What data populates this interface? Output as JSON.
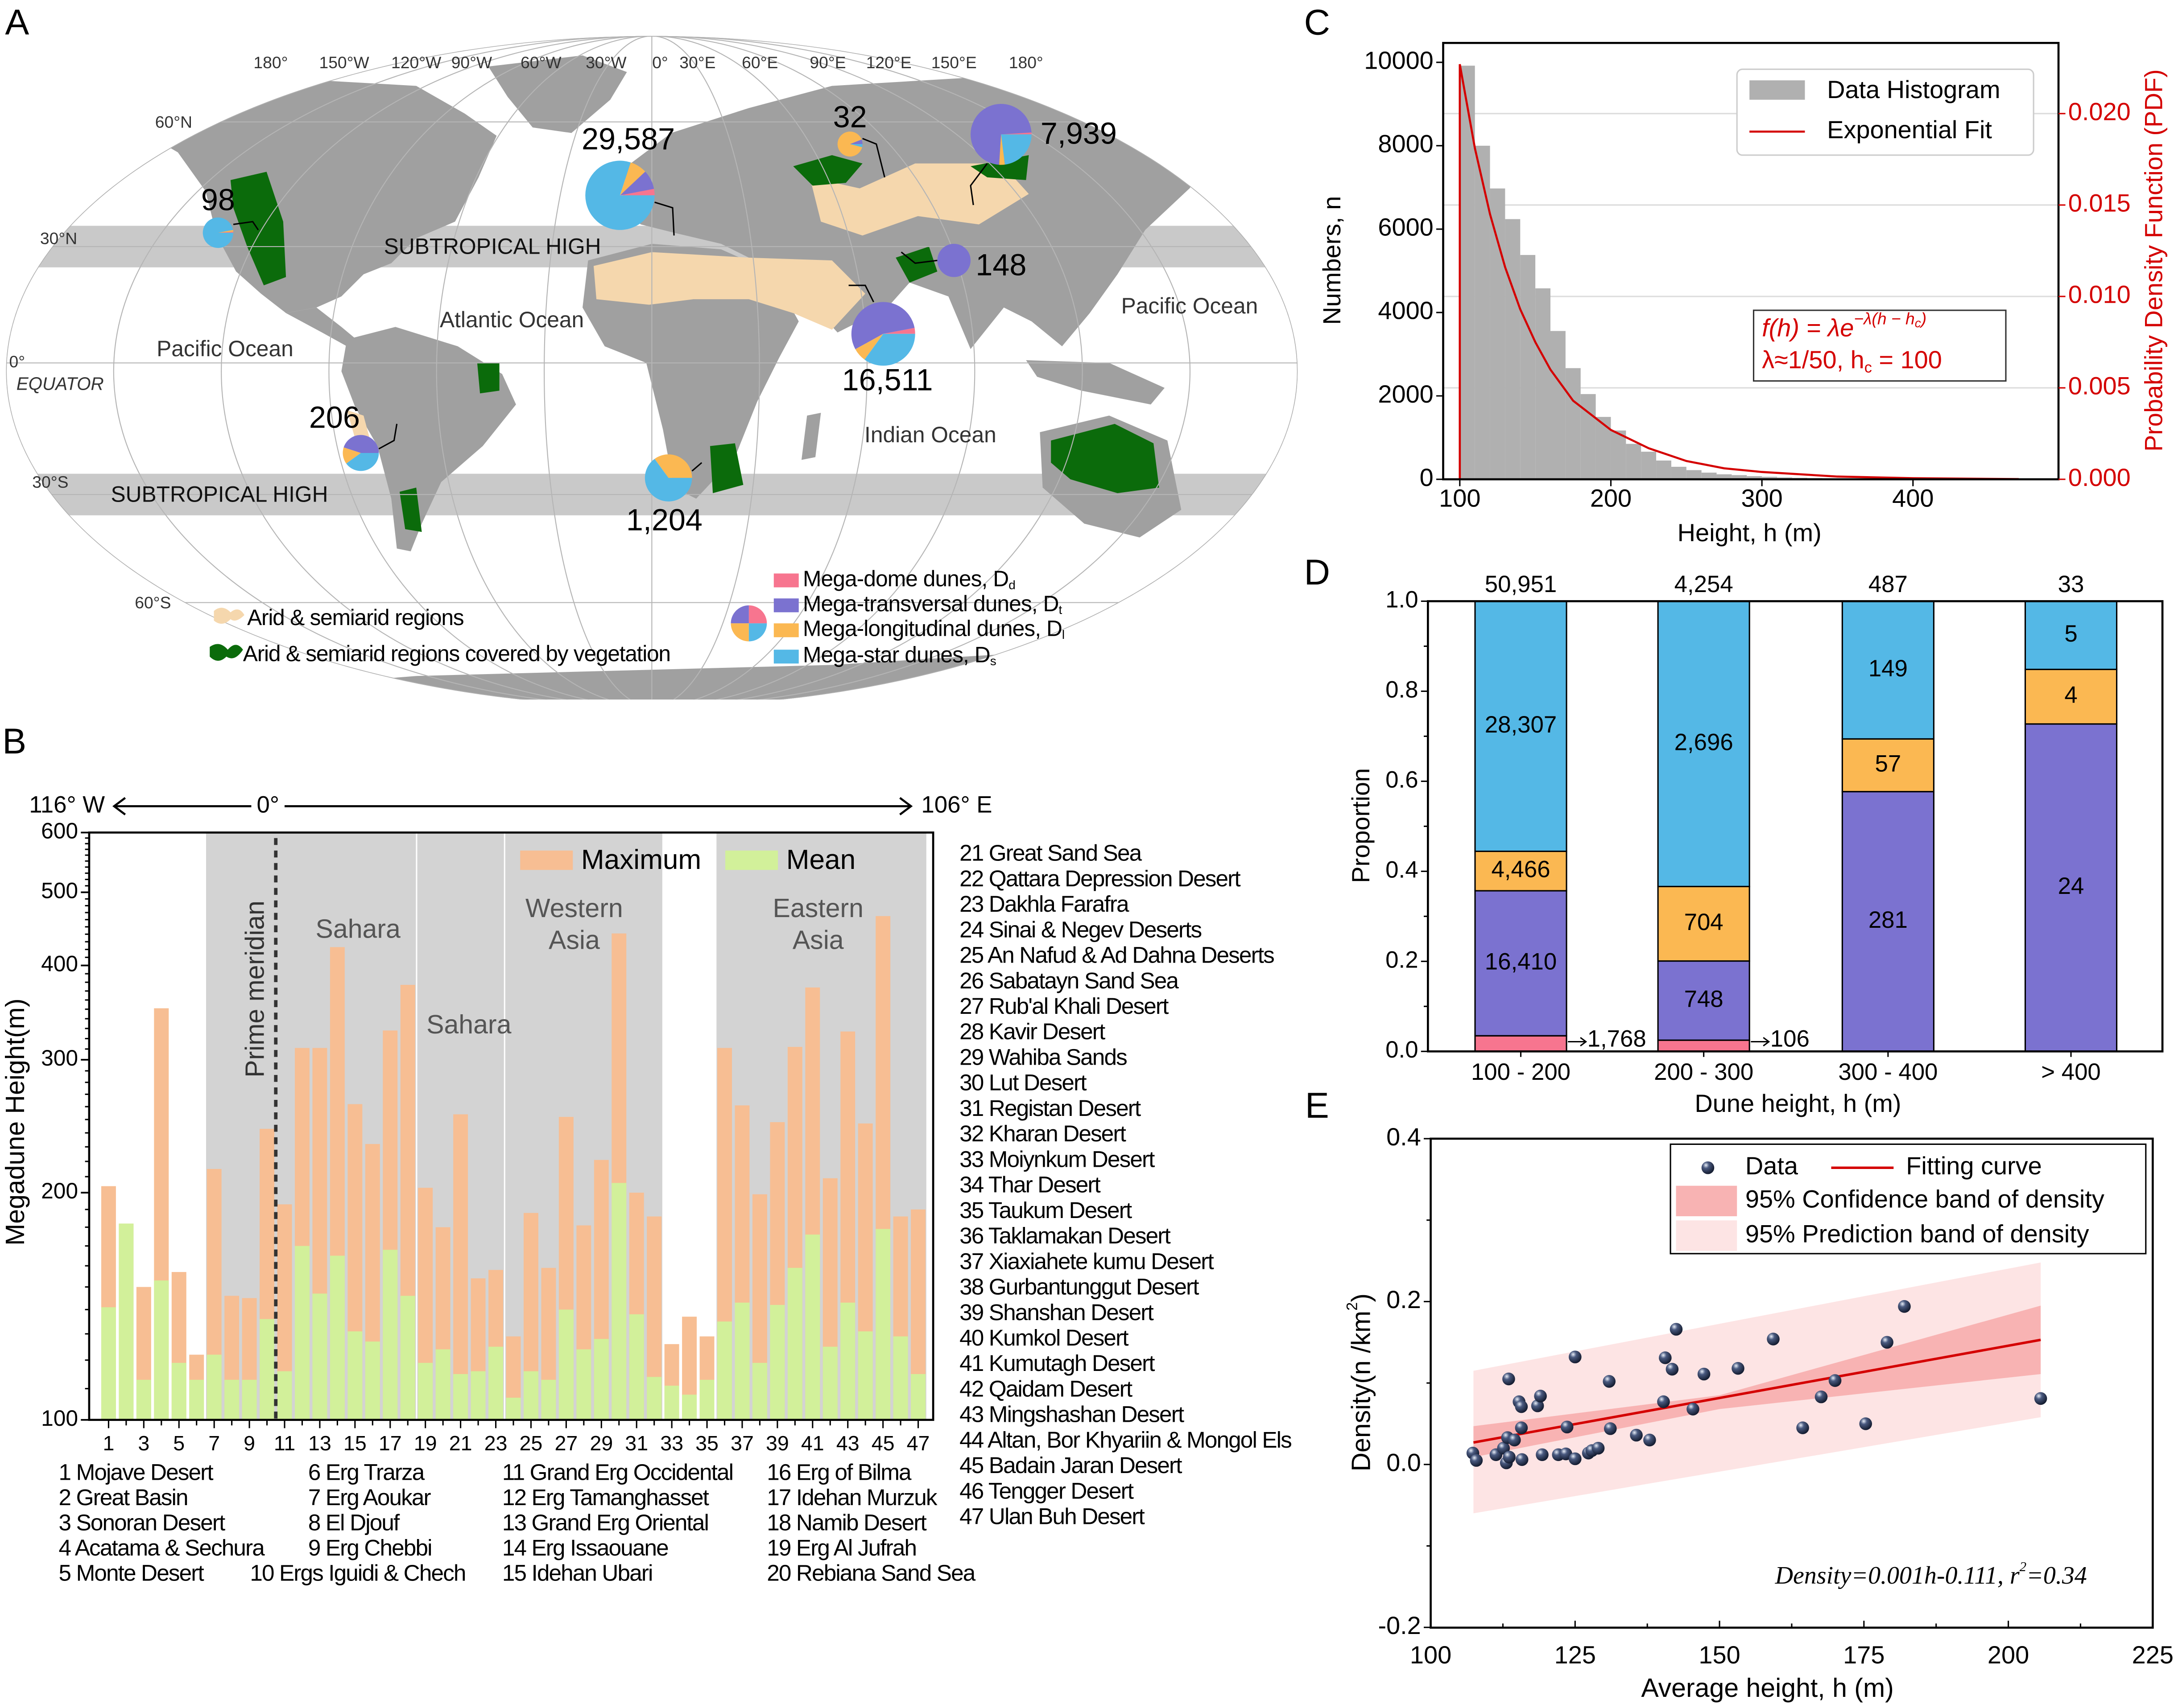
{
  "panel_labels": [
    "A",
    "B",
    "C",
    "D",
    "E"
  ],
  "colors": {
    "dome": "#f7758f",
    "transversal": "#7b72d0",
    "longitudinal": "#fbb852",
    "star": "#54b8e6",
    "land": "#a0a0a0",
    "arid": "#f5d7ad",
    "vegetation": "#0b6b0b",
    "band": "#c9c9c9",
    "maximum": "#f7be93",
    "mean": "#d2f09a",
    "region_shade": "#d3d3d3",
    "histogram": "#b0b0b0",
    "fit": "#d40000",
    "point": "#1f2a44",
    "confidence": "#f8b3b3",
    "prediction": "#fde4e4"
  },
  "chart_data": [
    {
      "type": "map",
      "longitude_labels": [
        "180°",
        "150°W",
        "120°W",
        "90°W",
        "60°W",
        "30°W",
        "0°",
        "30°E",
        "60°E",
        "90°E",
        "120°E",
        "150°E",
        "180°"
      ],
      "latitude_labels": [
        "60°N",
        "30°N",
        "0°",
        "30°S",
        "60°S"
      ],
      "equator_label": "EQUATOR",
      "band_labels": [
        "SUBTROPICAL HIGH",
        "SUBTROPICAL HIGH"
      ],
      "ocean_labels": [
        "Pacific Ocean",
        "Atlantic Ocean",
        "Pacific Ocean",
        "Indian Ocean"
      ],
      "pies": [
        {
          "total": "98",
          "fractions": [
            0.01,
            0.0,
            0.02,
            0.97
          ]
        },
        {
          "total": "29,587",
          "fractions": [
            0.03,
            0.09,
            0.08,
            0.8
          ]
        },
        {
          "total": "32",
          "fractions": [
            0.0,
            0.06,
            0.9,
            0.04
          ]
        },
        {
          "total": "7,939",
          "fractions": [
            0.01,
            0.73,
            0.03,
            0.23
          ]
        },
        {
          "total": "148",
          "fractions": [
            0.0,
            1.0,
            0.0,
            0.0
          ]
        },
        {
          "total": "16,511",
          "fractions": [
            0.03,
            0.55,
            0.07,
            0.35
          ]
        },
        {
          "total": "206",
          "fractions": [
            0.0,
            0.45,
            0.15,
            0.4
          ]
        },
        {
          "total": "1,204",
          "fractions": [
            0.0,
            0.0,
            0.35,
            0.65
          ]
        }
      ],
      "region_legend": [
        "Arid & semiarid regions",
        "Arid & semiarid regions covered by vegetation"
      ],
      "dune_legend": [
        {
          "label": "Mega-dome dunes, D",
          "sub": "d"
        },
        {
          "label": "Mega-transversal dunes, D",
          "sub": "t"
        },
        {
          "label": "Mega-longitudinal dunes, D",
          "sub": "l"
        },
        {
          "label": "Mega-star dunes, D",
          "sub": "s"
        }
      ]
    },
    {
      "type": "bar",
      "y_scale": "log",
      "ylim": [
        100,
        600
      ],
      "yticks": [
        "100",
        "200",
        "300",
        "400",
        "500",
        "600"
      ],
      "ylabel": "Megadune Height(m)",
      "xticklabels": [
        "1",
        "3",
        "5",
        "7",
        "9",
        "11",
        "13",
        "15",
        "17",
        "19",
        "21",
        "23",
        "25",
        "27",
        "29",
        "31",
        "33",
        "35",
        "37",
        "39",
        "41",
        "43",
        "45",
        "47"
      ],
      "direction": {
        "west": "116° W",
        "center": "0°",
        "east": "106° E"
      },
      "legend": [
        "Maximum",
        "Mean"
      ],
      "prime_meridian_label": "Prime meridian",
      "prime_meridian_between": [
        10,
        11
      ],
      "regions": [
        {
          "label": "Sahara",
          "from": 7,
          "to": 18
        },
        {
          "label": "Sahara",
          "from": 19,
          "to": 23
        },
        {
          "label": "Western Asia",
          "from": 24,
          "to": 32
        },
        {
          "label": "Eastern Asia",
          "from": 36,
          "to": 47
        }
      ],
      "categories": [
        1,
        2,
        3,
        4,
        5,
        6,
        7,
        8,
        9,
        10,
        11,
        12,
        13,
        14,
        15,
        16,
        17,
        18,
        19,
        20,
        21,
        22,
        23,
        24,
        25,
        26,
        27,
        28,
        29,
        30,
        31,
        32,
        33,
        34,
        35,
        36,
        37,
        38,
        39,
        40,
        41,
        42,
        43,
        44,
        45,
        46,
        47
      ],
      "series": [
        {
          "name": "Maximum",
          "values": [
            204,
            182,
            150,
            351,
            157,
            122,
            215,
            146,
            145,
            243,
            193,
            311,
            311,
            423,
            262,
            232,
            328,
            377,
            203,
            180,
            254,
            154,
            158,
            129,
            188,
            159,
            252,
            181,
            221,
            441,
            200,
            186,
            126,
            137,
            129,
            311,
            261,
            199,
            248,
            312,
            374,
            209,
            327,
            247,
            465,
            186,
            190
          ]
        },
        {
          "name": "Mean",
          "values": [
            141,
            182,
            113,
            153,
            119,
            113,
            122,
            113,
            113,
            136,
            116,
            170,
            147,
            165,
            131,
            127,
            168,
            146,
            119,
            124,
            115,
            116,
            125,
            107,
            116,
            113,
            140,
            124,
            128,
            206,
            138,
            114,
            111,
            108,
            113,
            135,
            143,
            119,
            142,
            159,
            176,
            125,
            143,
            131,
            179,
            129,
            115
          ]
        }
      ],
      "desert_names": [
        "1 Mojave Desert",
        "2 Great Basin",
        "3 Sonoran Desert",
        "4 Acatama & Sechura",
        "5 Monte Desert",
        "6 Erg Trarza",
        "7 Erg Aoukar",
        "8 El  Djouf",
        "9 Erg Chebbi",
        "10 Ergs Iguidi & Chech",
        "11 Grand Erg Occidental",
        "12 Erg Tamanghasset",
        "13 Grand Erg Oriental",
        "14 Erg Issaouane",
        "15 Idehan Ubari",
        "16 Erg of Bilma",
        "17 Idehan Murzuk",
        "18 Namib Desert",
        "19 Erg Al Jufrah",
        "20 Rebiana Sand Sea",
        "21 Great Sand Sea",
        "22 Qattara  Depression Desert",
        "23 Dakhla Farafra",
        "24 Sinai & Negev Deserts",
        "25 An Nafud & Ad Dahna Deserts",
        "26 Sabatayn Sand Sea",
        "27 Rub'al Khali Desert",
        "28 Kavir Desert",
        "29 Wahiba Sands",
        "30 Lut Desert",
        "31 Registan Desert",
        "32 Kharan Desert",
        "33 Moiynkum Desert",
        "34 Thar Desert",
        "35 Taukum Desert",
        "36 Taklamakan Desert",
        "37 Xiaxiahete kumu Desert",
        "38 Gurbantunggut Desert",
        "39 Shanshan Desert",
        "40 Kumkol Desert",
        "41 Kumutagh Desert",
        "42 Qaidam Desert",
        "43 Mingshashan Desert",
        "44 Altan, Bor Khyariin & Mongol Els",
        "45 Badain Jaran Desert",
        "46 Tengger Desert",
        "47 Ulan Buh Desert"
      ]
    },
    {
      "type": "bar",
      "subtype": "histogram",
      "bin_width": 10,
      "bin_starts": [
        100,
        110,
        120,
        130,
        140,
        150,
        160,
        170,
        180,
        190,
        200,
        210,
        220,
        230,
        240,
        250,
        260,
        270,
        280,
        290,
        300,
        310,
        320,
        330,
        340,
        350,
        360,
        370,
        380,
        390,
        400,
        410,
        420,
        430,
        440,
        450,
        460
      ],
      "counts": [
        9920,
        8000,
        6975,
        6240,
        5380,
        4580,
        3557,
        2666,
        2044,
        1496,
        1170,
        850,
        662,
        450,
        300,
        220,
        160,
        120,
        100,
        75,
        60,
        45,
        35,
        28,
        20,
        15,
        12,
        9,
        7,
        5,
        4,
        3,
        3,
        2,
        2,
        1,
        1
      ],
      "fit_curve": [
        [
          100,
          0
        ],
        [
          100,
          0.0227
        ],
        [
          110,
          0.0181
        ],
        [
          120,
          0.0145
        ],
        [
          130,
          0.0116
        ],
        [
          140,
          0.0093
        ],
        [
          150,
          0.0075
        ],
        [
          160,
          0.006
        ],
        [
          175,
          0.0043
        ],
        [
          200,
          0.0027
        ],
        [
          225,
          0.0017
        ],
        [
          250,
          0.001
        ],
        [
          275,
          0.0006
        ],
        [
          300,
          0.0004
        ],
        [
          350,
          0.00015
        ],
        [
          400,
          6e-05
        ],
        [
          470,
          1e-05
        ]
      ],
      "xlim": [
        90,
        487
      ],
      "ylim": [
        0,
        10450
      ],
      "y2lim": [
        0,
        0.0239
      ],
      "xticks": [
        "100",
        "200",
        "300",
        "400"
      ],
      "yticks": [
        "0",
        "2000",
        "4000",
        "6000",
        "8000",
        "10000"
      ],
      "y2ticks": [
        "0.000",
        "0.005",
        "0.010",
        "0.015",
        "0.020"
      ],
      "xlabel": "Height, h (m)",
      "ylabel": "Numbers, n",
      "y2label": "Probability Density Function (PDF)",
      "legend": [
        "Data Histogram",
        "Exponential Fit"
      ],
      "formula": {
        "l1_main": "f(h) = λe",
        "l1_sup": "−λ(h − h",
        "l1_sub": "c",
        "l1_end": ")",
        "l2_main": "λ≈1/50, h",
        "l2_sub": "c",
        "l2_end": " = 100"
      }
    },
    {
      "type": "bar",
      "subtype": "stacked",
      "categories": [
        "100 - 200",
        "200 - 300",
        "300 - 400",
        "> 400"
      ],
      "totals": [
        "50,951",
        "4,254",
        "487",
        "33"
      ],
      "stack_order": [
        "dome",
        "transversal",
        "longitudinal",
        "star"
      ],
      "counts": {
        "dome": [
          1768,
          106,
          0,
          0
        ],
        "transversal": [
          16410,
          748,
          281,
          24
        ],
        "longitudinal": [
          4466,
          704,
          57,
          4
        ],
        "star": [
          28307,
          2696,
          149,
          5
        ]
      },
      "value_labels": {
        "dome": [
          "1,768",
          "106",
          "",
          ""
        ],
        "transversal": [
          "16,410",
          "748",
          "281",
          "24"
        ],
        "longitudinal": [
          "4,466",
          "704",
          "57",
          "4"
        ],
        "star": [
          "28,307",
          "2,696",
          "149",
          "5"
        ]
      },
      "ylim": [
        0,
        1
      ],
      "yticks": [
        "0.0",
        "0.2",
        "0.4",
        "0.6",
        "0.8",
        "1.0"
      ],
      "ylabel": "Proportion",
      "xlabel": "Dune height, h (m)"
    },
    {
      "type": "scatter",
      "xlim": [
        100,
        225
      ],
      "ylim": [
        -0.2,
        0.4
      ],
      "xticks": [
        "100",
        "125",
        "150",
        "175",
        "200",
        "225"
      ],
      "yticks": [
        "-0.2",
        "0.0",
        "0.2",
        "0.4"
      ],
      "xlabel": "Average height, h (m)",
      "ylabel": "Density(n /km",
      "ylabel_sup": "2",
      "ylabel_end": ")",
      "legend": [
        "Data",
        "Fitting curve",
        "95% Confidence band of density",
        "95% Prediction band of density"
      ],
      "equation": "Density=0.001h-0.111, r",
      "equation_sup": "2",
      "equation_end": "=0.34",
      "points": [
        [
          107.3,
          0.014
        ],
        [
          107.9,
          0.005
        ],
        [
          111.3,
          0.012
        ],
        [
          112.6,
          0.02
        ],
        [
          113.1,
          0.002
        ],
        [
          113.3,
          0.033
        ],
        [
          113.5,
          0.105
        ],
        [
          113.6,
          0.009
        ],
        [
          114.5,
          0.03
        ],
        [
          115.3,
          0.077
        ],
        [
          115.7,
          0.071
        ],
        [
          115.7,
          0.045
        ],
        [
          115.8,
          0.006
        ],
        [
          118.5,
          0.072
        ],
        [
          119.0,
          0.084
        ],
        [
          119.3,
          0.012
        ],
        [
          122.1,
          0.012
        ],
        [
          123.4,
          0.013
        ],
        [
          123.6,
          0.046
        ],
        [
          125.0,
          0.007
        ],
        [
          125.0,
          0.132
        ],
        [
          127.3,
          0.014
        ],
        [
          127.9,
          0.017
        ],
        [
          129.0,
          0.02
        ],
        [
          130.9,
          0.102
        ],
        [
          131.1,
          0.044
        ],
        [
          135.6,
          0.036
        ],
        [
          137.9,
          0.03
        ],
        [
          140.3,
          0.077
        ],
        [
          140.6,
          0.131
        ],
        [
          141.8,
          0.117
        ],
        [
          142.5,
          0.166
        ],
        [
          145.4,
          0.068
        ],
        [
          147.3,
          0.111
        ],
        [
          153.2,
          0.118
        ],
        [
          159.3,
          0.154
        ],
        [
          164.4,
          0.045
        ],
        [
          167.6,
          0.083
        ],
        [
          170.0,
          0.103
        ],
        [
          175.3,
          0.05
        ],
        [
          179.0,
          0.15
        ],
        [
          182.0,
          0.194
        ],
        [
          205.6,
          0.081
        ]
      ],
      "fit_line": [
        [
          107.4,
          0.027
        ],
        [
          205.6,
          0.153
        ]
      ],
      "confidence_band": {
        "h": [
          107.4,
          150,
          205.6
        ],
        "upper": [
          0.047,
          0.085,
          0.195
        ],
        "lower": [
          0.009,
          0.068,
          0.111
        ]
      },
      "prediction_band": {
        "h": [
          107.4,
          205.6
        ],
        "upper": [
          0.115,
          0.248
        ],
        "lower": [
          -0.06,
          0.058
        ]
      }
    }
  ]
}
